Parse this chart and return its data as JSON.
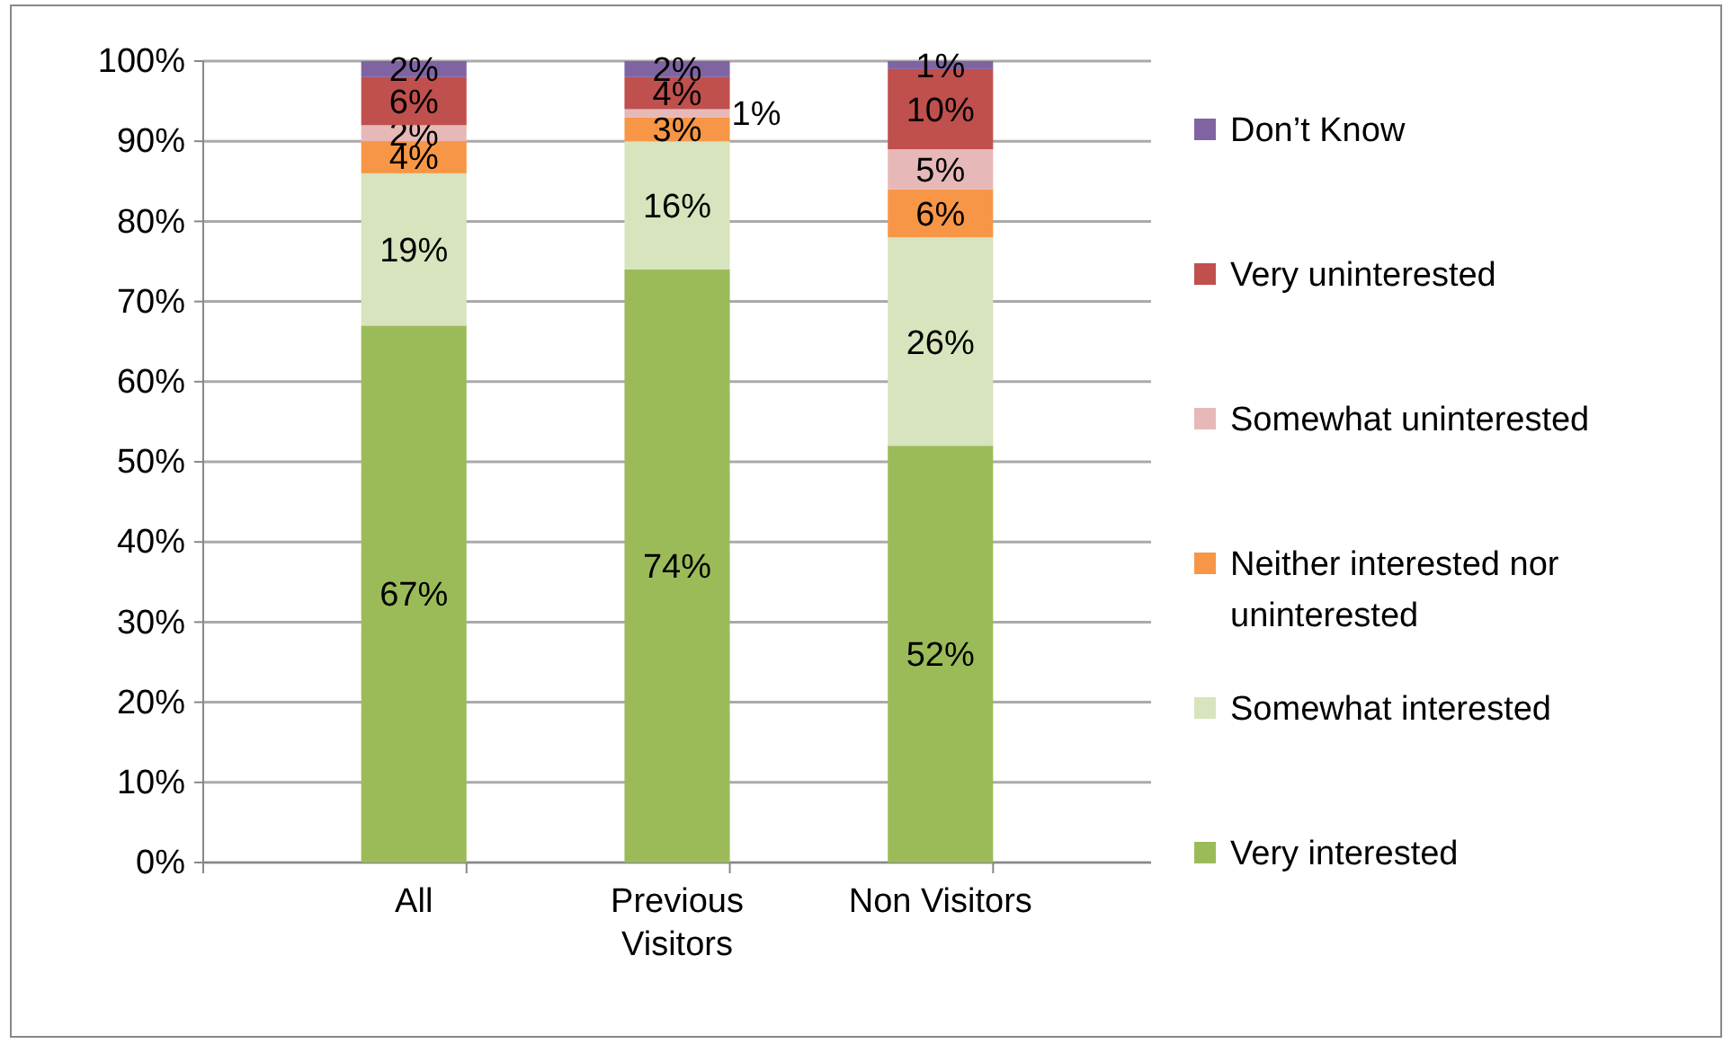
{
  "chart_data": {
    "type": "bar",
    "stacked": true,
    "categories": [
      "All",
      "Previous Visitors",
      "Non Visitors"
    ],
    "series": [
      {
        "name": "Very interested",
        "color": "#9bbb59",
        "values": [
          67,
          74,
          52
        ],
        "value_labels": [
          "67%",
          "74%",
          "52%"
        ]
      },
      {
        "name": "Somewhat interested",
        "color": "#d7e4bd",
        "values": [
          19,
          16,
          26
        ],
        "value_labels": [
          "19%",
          "16%",
          "26%"
        ]
      },
      {
        "name": "Neither interested nor uninterested",
        "color": "#f79646",
        "values": [
          4,
          3,
          6
        ],
        "value_labels": [
          "4%",
          "3%",
          "6%"
        ]
      },
      {
        "name": "Somewhat uninterested",
        "color": "#e6b9b8",
        "values": [
          2,
          1,
          5
        ],
        "value_labels": [
          "2%",
          "1%",
          "5%"
        ]
      },
      {
        "name": "Very uninterested",
        "color": "#c0504d",
        "values": [
          6,
          4,
          10
        ],
        "value_labels": [
          "6%",
          "4%",
          "10%"
        ]
      },
      {
        "name": "Don’t Know",
        "color": "#8064a2",
        "values": [
          2,
          2,
          1
        ],
        "value_labels": [
          "2%",
          "2%",
          "1%"
        ]
      }
    ],
    "ylim": [
      0,
      100
    ],
    "yticks": [
      {
        "value": 0,
        "label": "0%"
      },
      {
        "value": 10,
        "label": "10%"
      },
      {
        "value": 20,
        "label": "20%"
      },
      {
        "value": 30,
        "label": "30%"
      },
      {
        "value": 40,
        "label": "40%"
      },
      {
        "value": 50,
        "label": "50%"
      },
      {
        "value": 60,
        "label": "60%"
      },
      {
        "value": 70,
        "label": "70%"
      },
      {
        "value": 80,
        "label": "80%"
      },
      {
        "value": 90,
        "label": "90%"
      },
      {
        "value": 100,
        "label": "100%"
      }
    ],
    "grid": "y",
    "legend": "right"
  }
}
